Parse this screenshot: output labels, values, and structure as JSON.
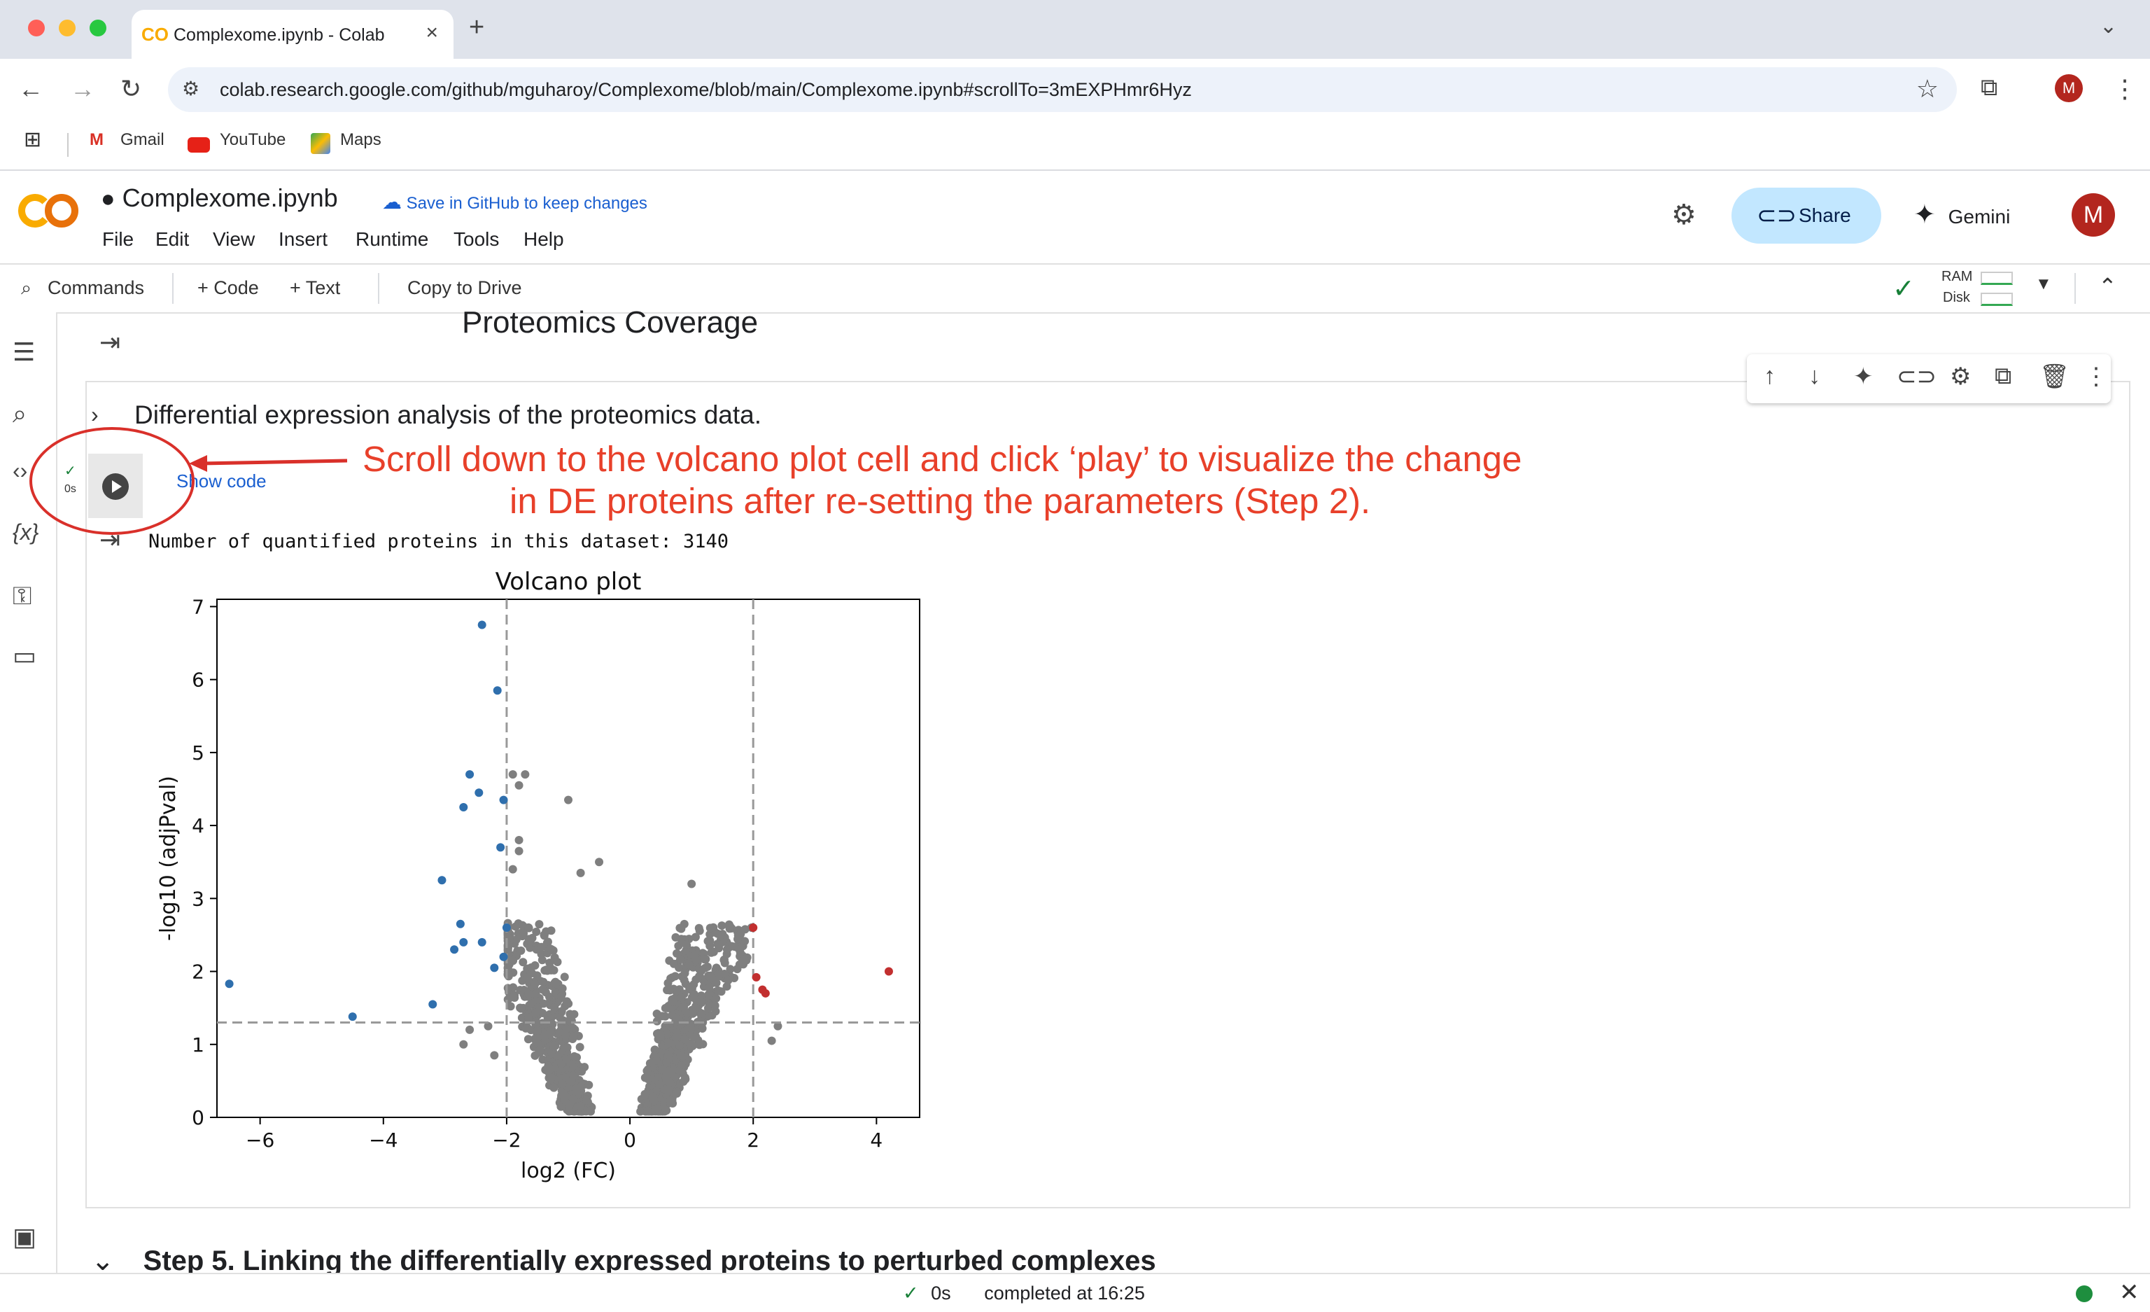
{
  "browser": {
    "tab_title": "Complexome.ipynb - Colab",
    "tab_favicon": "CO",
    "url": "colab.research.google.com/github/mguharoy/Complexome/blob/main/Complexome.ipynb#scrollTo=3mEXPHmr6Hyz",
    "avatar_letter": "M",
    "bookmarks": [
      "Gmail",
      "YouTube",
      "Maps"
    ]
  },
  "colab": {
    "notebook_name": "Complexome.ipynb",
    "save_github": "Save in GitHub to keep changes",
    "menu": [
      "File",
      "Edit",
      "View",
      "Insert",
      "Runtime",
      "Tools",
      "Help"
    ],
    "share_label": "Share",
    "gemini_label": "Gemini",
    "avatar_letter": "M",
    "toolbar": {
      "commands": "Commands",
      "code": "+ Code",
      "text": "+ Text",
      "copy_to_drive": "Copy to Drive",
      "ram": "RAM",
      "disk": "Disk"
    }
  },
  "notebook": {
    "prev_title": "Proteomics Coverage",
    "section_title": "Differential expression analysis of the proteomics data.",
    "exec_time": "0s",
    "show_code": "Show code",
    "output_text": "Number of quantified proteins in this dataset: 3140",
    "next_step": "Step 5. Linking the differentially expressed proteins to perturbed complexes"
  },
  "annotation": {
    "line1": "Scroll down to the volcano plot cell and click ‘play’ to visualize the change",
    "line2": "in DE proteins after re-setting the parameters (Step 2).",
    "color": "#e8402a"
  },
  "status": {
    "duration": "0s",
    "completed": "completed at 16:25"
  },
  "chart_data": {
    "type": "scatter",
    "title": "Volcano plot",
    "xlabel": "log2 (FC)",
    "ylabel": "-log10 (adjPval)",
    "xlim": [
      -6.7,
      4.7
    ],
    "ylim": [
      0,
      7.1
    ],
    "xticks": [
      -6,
      -4,
      -2,
      0,
      2,
      4
    ],
    "yticks": [
      0,
      1,
      2,
      3,
      4,
      5,
      6,
      7
    ],
    "xtick_labels": [
      "−6",
      "−4",
      "−2",
      "0",
      "2",
      "4"
    ],
    "ytick_labels": [
      "0",
      "1",
      "2",
      "3",
      "4",
      "5",
      "6",
      "7"
    ],
    "thresholds": {
      "x": [
        -2,
        2
      ],
      "y": 1.3
    },
    "colors": {
      "down": "#2f6fad",
      "up": "#c22f2f",
      "ns": "#7f7f7f"
    },
    "down_points": [
      [
        -2.4,
        6.75
      ],
      [
        -2.15,
        5.85
      ],
      [
        -2.6,
        4.7
      ],
      [
        -2.45,
        4.45
      ],
      [
        -2.7,
        4.25
      ],
      [
        -2.05,
        4.35
      ],
      [
        -2.1,
        3.7
      ],
      [
        -3.05,
        3.25
      ],
      [
        -2.75,
        2.65
      ],
      [
        -2.4,
        2.4
      ],
      [
        -2.7,
        2.4
      ],
      [
        -2.85,
        2.3
      ],
      [
        -2.2,
        2.05
      ],
      [
        -3.2,
        1.55
      ],
      [
        -6.5,
        1.83
      ],
      [
        -4.5,
        1.38
      ],
      [
        -2.0,
        2.6
      ],
      [
        -2.05,
        2.2
      ]
    ],
    "up_points": [
      [
        2.0,
        2.6
      ],
      [
        2.05,
        1.92
      ],
      [
        2.15,
        1.75
      ],
      [
        2.2,
        1.7
      ],
      [
        4.2,
        2.0
      ]
    ],
    "ns_sample": [
      [
        -1.9,
        4.7
      ],
      [
        -1.7,
        4.7
      ],
      [
        -1.8,
        4.55
      ],
      [
        -1.0,
        4.35
      ],
      [
        -1.8,
        3.8
      ],
      [
        -1.8,
        3.65
      ],
      [
        -0.5,
        3.5
      ],
      [
        -0.8,
        3.35
      ],
      [
        1.0,
        3.2
      ],
      [
        -1.9,
        3.4
      ],
      [
        -2.3,
        1.25
      ],
      [
        -2.6,
        1.2
      ],
      [
        -2.7,
        1.0
      ],
      [
        -2.2,
        0.85
      ],
      [
        2.3,
        1.05
      ],
      [
        2.4,
        1.25
      ]
    ]
  }
}
